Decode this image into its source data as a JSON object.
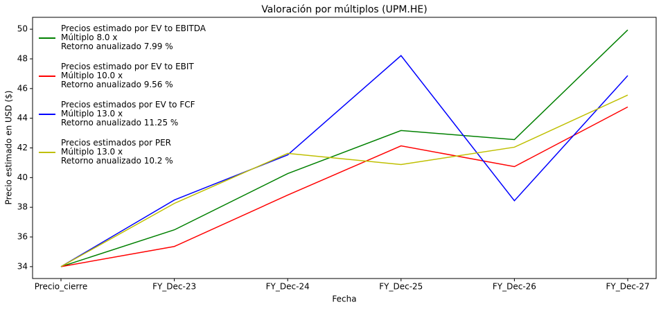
{
  "chart_data": {
    "type": "line",
    "title": "Valoración por múltiplos (UPM.HE)",
    "x_label": "Fecha",
    "y_label": "Precio estimado en USD ($)",
    "categories": [
      "Precio_cierre",
      "FY_Dec-23",
      "FY_Dec-24",
      "FY_Dec-25",
      "FY_Dec-26",
      "FY_Dec-27"
    ],
    "series": [
      {
        "name": "Precios estimado por EV to EBITDA\nMúltiplo 8.0 x\nRetorno anualizado 7.99 %",
        "color": "#008000",
        "values": [
          34.0,
          36.48,
          40.27,
          43.17,
          42.56,
          49.95
        ]
      },
      {
        "name": "Precios estimado por EV to EBIT\nMúltiplo 10.0 x\nRetorno anualizado 9.56 %",
        "color": "#ff0000",
        "values": [
          34.0,
          35.36,
          38.82,
          42.14,
          40.74,
          44.76
        ]
      },
      {
        "name": "Precios estimados por EV to FCF\nMúltiplo 13.0 x\nRetorno anualizado 11.25 %",
        "color": "#0000ff",
        "values": [
          34.0,
          38.49,
          41.53,
          48.22,
          38.44,
          46.87
        ]
      },
      {
        "name": "Precios estimados por PER\nMúltiplo 13.0 x\nRetorno anualizado 10.2 %",
        "color": "#bfbf00",
        "values": [
          34.0,
          38.26,
          41.63,
          40.88,
          42.05,
          45.56
        ]
      }
    ],
    "ylim": [
      33.2,
      50.8
    ],
    "yticks": [
      34,
      36,
      38,
      40,
      42,
      44,
      46,
      48,
      50
    ],
    "grid": false,
    "legend": "upper left"
  }
}
